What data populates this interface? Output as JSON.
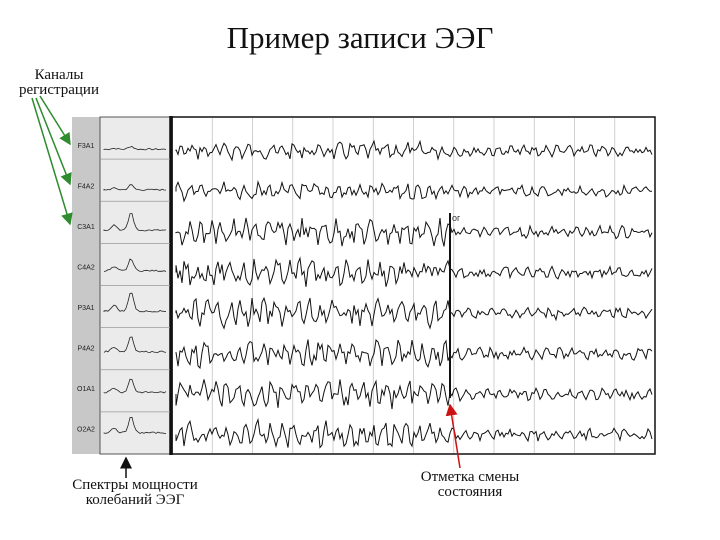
{
  "title": "Пример записи ЭЭГ",
  "labels": {
    "channels": [
      "Каналы",
      "регистрации"
    ],
    "spectra": [
      "Спектры мощности",
      "колебаний ЭЭГ"
    ],
    "state_mark": [
      "Отметка смены",
      "состояния"
    ]
  },
  "channels": [
    "F3A1",
    "F4A2",
    "C3A1",
    "C4A2",
    "P3A1",
    "P4A2",
    "O1A1",
    "O2A2"
  ],
  "marker_text": "ог",
  "colors": {
    "arrow_green": "#2e8b2e",
    "arrow_red": "#cc1111",
    "trace": "#111111",
    "spectrum_panel": "#e6e6e6",
    "grid": "#bbbbbb"
  }
}
